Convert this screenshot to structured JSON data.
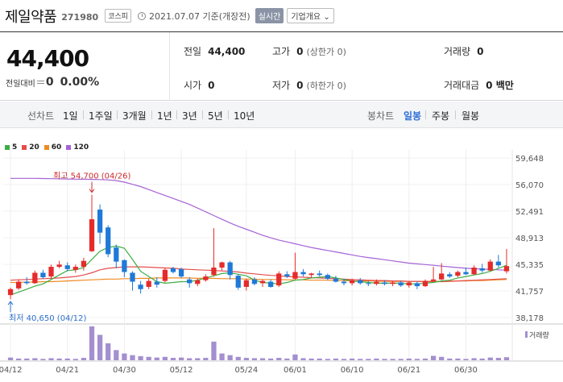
{
  "header": {
    "name": "제일약품",
    "code": "271980",
    "market": "코스피",
    "asof": "2021.07.07 기준(개장전)",
    "realtime": "실시간",
    "overview": "기업개요"
  },
  "summary": {
    "price": "44,400",
    "change_label": "전일대비",
    "change": "0",
    "change_pct": "0.00%",
    "prev_close_label": "전일",
    "prev_close": "44,400",
    "high_label": "고가",
    "high": "0",
    "upper_limit": "(상한가 0)",
    "volume_label": "거래량",
    "volume": "0",
    "open_label": "시가",
    "open": "0",
    "low_label": "저가",
    "low": "0",
    "lower_limit": "(하한가 0)",
    "trade_value_label": "거래대금",
    "trade_value": "0 백만"
  },
  "toolbar": {
    "line_chart": "선차트",
    "line_periods": [
      "1일",
      "1주일",
      "3개월",
      "1년",
      "3년",
      "5년",
      "10년"
    ],
    "candle_chart": "봉차트",
    "candle_periods": [
      "일봉",
      "주봉",
      "월봉"
    ],
    "active_candle": "일봉"
  },
  "colors": {
    "up": "#e52b2b",
    "down": "#1f79d8",
    "ma5": "#3dae44",
    "ma20": "#e54d4d",
    "ma60": "#f08a24",
    "ma120": "#a463d6",
    "volume": "#a48fd0"
  },
  "chart_data": {
    "type": "candlestick",
    "moving_averages": [
      {
        "name": "5",
        "color": "#3dae44"
      },
      {
        "name": "20",
        "color": "#e54d4d"
      },
      {
        "name": "60",
        "color": "#f08a24"
      },
      {
        "name": "120",
        "color": "#a463d6"
      }
    ],
    "y_ticks": [
      38178,
      41757,
      45335,
      48913,
      52491,
      56070,
      59648
    ],
    "y_tick_labels": [
      "38,178",
      "41,757",
      "45,335",
      "48,913",
      "52,491",
      "56,070",
      "59,648"
    ],
    "ylim": [
      38178,
      59648
    ],
    "x_tick_labels": [
      "04/12",
      "04/21",
      "04/30",
      "05/12",
      "05/24",
      "06/01",
      "06/10",
      "06/21",
      "06/30"
    ],
    "x_tick_index": [
      0,
      7,
      14,
      21,
      29,
      35,
      42,
      49,
      56
    ],
    "high_annotation": "최고 54,700 (04/26)",
    "high_value": 54700,
    "high_index": 10,
    "low_annotation": "최저 40,650 (04/12)",
    "low_value": 40650,
    "low_index": 0,
    "volume_legend": "거래량",
    "candles": [
      {
        "o": 41200,
        "h": 42200,
        "l": 40650,
        "c": 42000
      },
      {
        "o": 42100,
        "h": 43300,
        "l": 41900,
        "c": 43000
      },
      {
        "o": 43000,
        "h": 43600,
        "l": 42600,
        "c": 42800
      },
      {
        "o": 42800,
        "h": 44500,
        "l": 42700,
        "c": 44200
      },
      {
        "o": 44200,
        "h": 44600,
        "l": 43400,
        "c": 43600
      },
      {
        "o": 43700,
        "h": 45300,
        "l": 43500,
        "c": 45000
      },
      {
        "o": 45000,
        "h": 45800,
        "l": 44800,
        "c": 45300
      },
      {
        "o": 45200,
        "h": 45600,
        "l": 44400,
        "c": 44700
      },
      {
        "o": 44600,
        "h": 45300,
        "l": 44200,
        "c": 45000
      },
      {
        "o": 45000,
        "h": 46200,
        "l": 44500,
        "c": 45800
      },
      {
        "o": 47100,
        "h": 54700,
        "l": 47000,
        "c": 51400
      },
      {
        "o": 52700,
        "h": 53400,
        "l": 48100,
        "c": 49600
      },
      {
        "o": 50300,
        "h": 50600,
        "l": 46300,
        "c": 46700
      },
      {
        "o": 47600,
        "h": 48000,
        "l": 44800,
        "c": 45700
      },
      {
        "o": 45900,
        "h": 46000,
        "l": 43600,
        "c": 44300
      },
      {
        "o": 44200,
        "h": 44400,
        "l": 41800,
        "c": 43000
      },
      {
        "o": 42600,
        "h": 43100,
        "l": 41400,
        "c": 42000
      },
      {
        "o": 42300,
        "h": 43400,
        "l": 42000,
        "c": 43100
      },
      {
        "o": 43000,
        "h": 43600,
        "l": 42200,
        "c": 42600
      },
      {
        "o": 43100,
        "h": 44800,
        "l": 42900,
        "c": 44600
      },
      {
        "o": 44800,
        "h": 45000,
        "l": 44100,
        "c": 44300
      },
      {
        "o": 44700,
        "h": 44900,
        "l": 43500,
        "c": 43700
      },
      {
        "o": 43300,
        "h": 43600,
        "l": 42200,
        "c": 42800
      },
      {
        "o": 42700,
        "h": 43400,
        "l": 42400,
        "c": 43200
      },
      {
        "o": 43200,
        "h": 44000,
        "l": 43000,
        "c": 43700
      },
      {
        "o": 43900,
        "h": 50200,
        "l": 43700,
        "c": 44900
      },
      {
        "o": 44900,
        "h": 45700,
        "l": 44500,
        "c": 45600
      },
      {
        "o": 45600,
        "h": 45800,
        "l": 43300,
        "c": 43900
      },
      {
        "o": 43800,
        "h": 44000,
        "l": 41900,
        "c": 42200
      },
      {
        "o": 42300,
        "h": 43400,
        "l": 41800,
        "c": 43200
      },
      {
        "o": 43300,
        "h": 43600,
        "l": 42500,
        "c": 42700
      },
      {
        "o": 42800,
        "h": 43300,
        "l": 42300,
        "c": 43100
      },
      {
        "o": 43000,
        "h": 43300,
        "l": 42200,
        "c": 42300
      },
      {
        "o": 42500,
        "h": 44400,
        "l": 42300,
        "c": 44100
      },
      {
        "o": 44000,
        "h": 44400,
        "l": 43500,
        "c": 43700
      },
      {
        "o": 43400,
        "h": 46900,
        "l": 43300,
        "c": 44300
      },
      {
        "o": 44300,
        "h": 44700,
        "l": 43700,
        "c": 44000
      },
      {
        "o": 43900,
        "h": 44200,
        "l": 43500,
        "c": 44100
      },
      {
        "o": 44100,
        "h": 44500,
        "l": 43700,
        "c": 43900
      },
      {
        "o": 43900,
        "h": 44100,
        "l": 43200,
        "c": 43400
      },
      {
        "o": 43400,
        "h": 43800,
        "l": 42900,
        "c": 43000
      },
      {
        "o": 43000,
        "h": 43400,
        "l": 42500,
        "c": 42800
      },
      {
        "o": 42800,
        "h": 43400,
        "l": 42500,
        "c": 43200
      },
      {
        "o": 43200,
        "h": 43500,
        "l": 42600,
        "c": 42800
      },
      {
        "o": 42800,
        "h": 43100,
        "l": 42400,
        "c": 42700
      },
      {
        "o": 42700,
        "h": 43300,
        "l": 42500,
        "c": 43000
      },
      {
        "o": 42900,
        "h": 43200,
        "l": 42500,
        "c": 42700
      },
      {
        "o": 42700,
        "h": 43100,
        "l": 42400,
        "c": 42900
      },
      {
        "o": 42900,
        "h": 43100,
        "l": 42300,
        "c": 42500
      },
      {
        "o": 42500,
        "h": 43100,
        "l": 42200,
        "c": 42900
      },
      {
        "o": 42800,
        "h": 43000,
        "l": 42000,
        "c": 42400
      },
      {
        "o": 42400,
        "h": 43300,
        "l": 42300,
        "c": 43100
      },
      {
        "o": 43100,
        "h": 45000,
        "l": 43000,
        "c": 43300
      },
      {
        "o": 43300,
        "h": 45500,
        "l": 43200,
        "c": 44100
      },
      {
        "o": 44000,
        "h": 44300,
        "l": 43500,
        "c": 43700
      },
      {
        "o": 43800,
        "h": 44500,
        "l": 43600,
        "c": 44300
      },
      {
        "o": 44300,
        "h": 44900,
        "l": 43900,
        "c": 44000
      },
      {
        "o": 44000,
        "h": 45200,
        "l": 43900,
        "c": 44900
      },
      {
        "o": 44800,
        "h": 45400,
        "l": 44200,
        "c": 44500
      },
      {
        "o": 44500,
        "h": 46000,
        "l": 44400,
        "c": 45700
      },
      {
        "o": 45700,
        "h": 46600,
        "l": 44900,
        "c": 45200
      },
      {
        "o": 44400,
        "h": 47400,
        "l": 44100,
        "c": 45100
      }
    ],
    "volume_rel": [
      0.08,
      0.05,
      0.05,
      0.06,
      0.04,
      0.06,
      0.05,
      0.05,
      0.04,
      0.07,
      1.0,
      0.75,
      0.5,
      0.3,
      0.2,
      0.15,
      0.12,
      0.1,
      0.08,
      0.1,
      0.07,
      0.08,
      0.06,
      0.06,
      0.07,
      0.55,
      0.2,
      0.15,
      0.1,
      0.07,
      0.06,
      0.06,
      0.05,
      0.07,
      0.05,
      0.17,
      0.06,
      0.05,
      0.05,
      0.04,
      0.05,
      0.04,
      0.05,
      0.04,
      0.04,
      0.05,
      0.04,
      0.04,
      0.04,
      0.05,
      0.04,
      0.05,
      0.13,
      0.1,
      0.05,
      0.05,
      0.04,
      0.06,
      0.05,
      0.08,
      0.07,
      0.09
    ],
    "ma5": [
      41200,
      41600,
      42000,
      42400,
      42700,
      43300,
      43900,
      44500,
      44600,
      44900,
      46000,
      47100,
      47600,
      47800,
      47500,
      46000,
      44400,
      43700,
      43000,
      42800,
      42900,
      43000,
      43000,
      43200,
      43500,
      43800,
      44100,
      44200,
      44000,
      43800,
      43200,
      42900,
      42800,
      42700,
      42900,
      43200,
      43300,
      43500,
      43600,
      43700,
      43500,
      43300,
      43100,
      43000,
      42900,
      42800,
      42800,
      42800,
      42800,
      42700,
      42700,
      42800,
      42900,
      43100,
      43200,
      43500,
      43700,
      43900,
      44100,
      44400,
      44800,
      45200
    ],
    "ma20": [
      43200,
      43250,
      43300,
      43350,
      43400,
      43450,
      43500,
      43600,
      43700,
      43900,
      44200,
      44600,
      44800,
      44900,
      45000,
      45000,
      45000,
      44950,
      44900,
      44850,
      44800,
      44700,
      44650,
      44600,
      44550,
      44500,
      44450,
      44400,
      44300,
      44150,
      44050,
      43950,
      43850,
      43800,
      43700,
      43650,
      43600,
      43550,
      43500,
      43450,
      43400,
      43350,
      43300,
      43250,
      43200,
      43150,
      43150,
      43100,
      43100,
      43050,
      43050,
      43000,
      43000,
      43000,
      43050,
      43100,
      43150,
      43200,
      43250,
      43300,
      43350,
      43400
    ],
    "ma60": [
      42900,
      42900,
      42950,
      42950,
      43000,
      43000,
      43050,
      43100,
      43150,
      43200,
      43250,
      43300,
      43350,
      43350,
      43400,
      43400,
      43450,
      43450,
      43500,
      43500,
      43500,
      43500,
      43500,
      43450,
      43450,
      43450,
      43400,
      43400,
      43400,
      43350,
      43350,
      43300,
      43300,
      43300,
      43250,
      43250,
      43250,
      43200,
      43200,
      43200,
      43150,
      43150,
      43100,
      43100,
      43100,
      43100,
      43050,
      43050,
      43050,
      43050,
      43050,
      43050,
      43050,
      43050,
      43100,
      43100,
      43100,
      43150,
      43150,
      43200,
      43250,
      43300
    ],
    "ma120": [
      56900,
      56900,
      56900,
      56900,
      56880,
      56860,
      56840,
      56820,
      56800,
      56780,
      56760,
      56740,
      56700,
      56600,
      56400,
      56100,
      55800,
      55400,
      55000,
      54600,
      54200,
      53800,
      53400,
      52900,
      52400,
      51900,
      51400,
      50900,
      50450,
      50050,
      49650,
      49250,
      48900,
      48600,
      48350,
      48100,
      47850,
      47600,
      47400,
      47200,
      47000,
      46800,
      46600,
      46400,
      46250,
      46100,
      45950,
      45800,
      45650,
      45500,
      45400,
      45300,
      45200,
      45100,
      45000,
      44900,
      44800,
      44750,
      44700,
      44650,
      44600,
      44550
    ]
  }
}
